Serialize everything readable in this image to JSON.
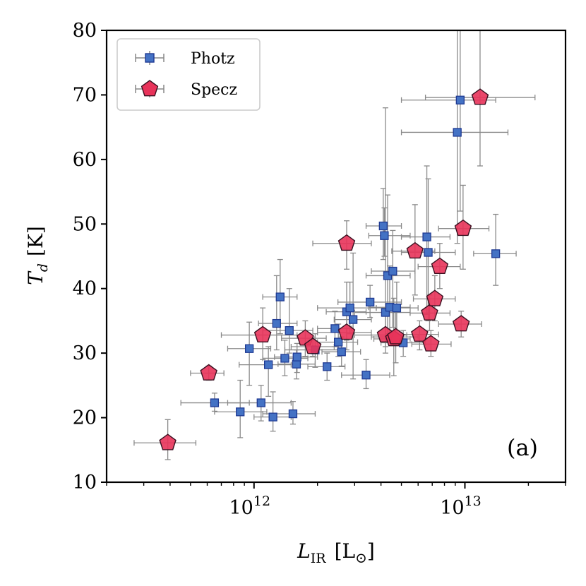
{
  "chart_data": {
    "type": "scatter",
    "xscale": "log",
    "xlim": [
      200000000000.0,
      30000000000000.0
    ],
    "ylim": [
      10,
      80
    ],
    "xlabel": "L",
    "xlabel_sub": "IR",
    "xlabel_unit": "[L",
    "xlabel_unit_sub": "⊙",
    "xlabel_unit_close": "]",
    "ylabel": "T",
    "ylabel_sub": "d",
    "ylabel_unit": "[K]",
    "yticks": [
      10,
      20,
      30,
      40,
      50,
      60,
      70,
      80
    ],
    "yticklabels": [
      "10",
      "20",
      "30",
      "40",
      "50",
      "60",
      "70",
      "80"
    ],
    "xticks": [
      1000000000000.0,
      10000000000000.0
    ],
    "xtick_base": "10",
    "xtick_exponents": [
      "12",
      "13"
    ],
    "panel_label": "(a)",
    "legend_position": "top-left",
    "series": [
      {
        "name": "Photz",
        "marker": "square",
        "color": "#4472c4",
        "edgecolor": "#1f3a93",
        "points": [
          {
            "x": 650000000000.0,
            "y": 22.3,
            "xlo": 450000000000.0,
            "xhi": 950000000000.0,
            "ylo": 21.0,
            "yhi": 23.8
          },
          {
            "x": 860000000000.0,
            "y": 20.9,
            "xlo": 650000000000.0,
            "xhi": 1150000000000.0,
            "ylo": 16.9,
            "yhi": 25.8
          },
          {
            "x": 950000000000.0,
            "y": 30.7,
            "xlo": 750000000000.0,
            "xhi": 1200000000000.0,
            "ylo": 25.0,
            "yhi": 34.8
          },
          {
            "x": 1080000000000.0,
            "y": 22.3,
            "xlo": 750000000000.0,
            "xhi": 1500000000000.0,
            "ylo": 19.5,
            "yhi": 25.0
          },
          {
            "x": 1170000000000.0,
            "y": 28.2,
            "xlo": 850000000000.0,
            "xhi": 1500000000000.0,
            "ylo": 23.3,
            "yhi": 31.0
          },
          {
            "x": 1230000000000.0,
            "y": 20.1,
            "xlo": 1000000000000.0,
            "xhi": 1500000000000.0,
            "ylo": 17.9,
            "yhi": 24.0
          },
          {
            "x": 1280000000000.0,
            "y": 34.6,
            "xlo": 1050000000000.0,
            "xhi": 1600000000000.0,
            "ylo": 30.5,
            "yhi": 42.0
          },
          {
            "x": 1330000000000.0,
            "y": 38.7,
            "xlo": 1100000000000.0,
            "xhi": 1600000000000.0,
            "ylo": 33.0,
            "yhi": 44.5
          },
          {
            "x": 1400000000000.0,
            "y": 29.2,
            "xlo": 1100000000000.0,
            "xhi": 1800000000000.0,
            "ylo": 26.5,
            "yhi": 32.0
          },
          {
            "x": 1470000000000.0,
            "y": 33.5,
            "xlo": 1100000000000.0,
            "xhi": 1900000000000.0,
            "ylo": 30.0,
            "yhi": 40.0
          },
          {
            "x": 1530000000000.0,
            "y": 20.6,
            "xlo": 1100000000000.0,
            "xhi": 1950000000000.0,
            "ylo": 19.0,
            "yhi": 22.5
          },
          {
            "x": 1590000000000.0,
            "y": 28.3,
            "xlo": 1300000000000.0,
            "xhi": 1950000000000.0,
            "ylo": 26.0,
            "yhi": 30.5
          },
          {
            "x": 1600000000000.0,
            "y": 29.4,
            "xlo": 1250000000000.0,
            "xhi": 2000000000000.0,
            "ylo": 27.0,
            "yhi": 31.5
          },
          {
            "x": 1950000000000.0,
            "y": 30.5,
            "xlo": 1400000000000.0,
            "xhi": 2500000000000.0,
            "ylo": 27.8,
            "yhi": 33.0
          },
          {
            "x": 2220000000000.0,
            "y": 27.9,
            "xlo": 1800000000000.0,
            "xhi": 2700000000000.0,
            "ylo": 25.8,
            "yhi": 30.0
          },
          {
            "x": 2420000000000.0,
            "y": 33.8,
            "xlo": 2000000000000.0,
            "xhi": 2900000000000.0,
            "ylo": 31.0,
            "yhi": 36.5
          },
          {
            "x": 2510000000000.0,
            "y": 31.7,
            "xlo": 2000000000000.0,
            "xhi": 3100000000000.0,
            "ylo": 29.5,
            "yhi": 34.5
          },
          {
            "x": 2600000000000.0,
            "y": 30.2,
            "xlo": 2100000000000.0,
            "xhi": 3200000000000.0,
            "ylo": 28.0,
            "yhi": 32.5
          },
          {
            "x": 2750000000000.0,
            "y": 36.4,
            "xlo": 2200000000000.0,
            "xhi": 3400000000000.0,
            "ylo": 32.0,
            "yhi": 41.0
          },
          {
            "x": 2850000000000.0,
            "y": 37.0,
            "xlo": 2000000000000.0,
            "xhi": 3800000000000.0,
            "ylo": 33.0,
            "yhi": 41.0
          },
          {
            "x": 2950000000000.0,
            "y": 35.2,
            "xlo": 2400000000000.0,
            "xhi": 3600000000000.0,
            "ylo": 26.0,
            "yhi": 45.5
          },
          {
            "x": 3400000000000.0,
            "y": 26.6,
            "xlo": 2600000000000.0,
            "xhi": 4400000000000.0,
            "ylo": 24.5,
            "yhi": 29.0
          },
          {
            "x": 3550000000000.0,
            "y": 37.9,
            "xlo": 2500000000000.0,
            "xhi": 5000000000000.0,
            "ylo": 35.5,
            "yhi": 40.5
          },
          {
            "x": 4100000000000.0,
            "y": 49.7,
            "xlo": 3400000000000.0,
            "xhi": 5000000000000.0,
            "ylo": 44.5,
            "yhi": 55.5
          },
          {
            "x": 4150000000000.0,
            "y": 48.2,
            "xlo": 3500000000000.0,
            "xhi": 5500000000000.0,
            "ylo": 45.0,
            "yhi": 52.5
          },
          {
            "x": 4200000000000.0,
            "y": 36.3,
            "xlo": 3000000000000.0,
            "xhi": 5500000000000.0,
            "ylo": 31.0,
            "yhi": 68.0
          },
          {
            "x": 4300000000000.0,
            "y": 42.0,
            "xlo": 3400000000000.0,
            "xhi": 5500000000000.0,
            "ylo": 33.0,
            "yhi": 54.5
          },
          {
            "x": 4400000000000.0,
            "y": 37.1,
            "xlo": 3500000000000.0,
            "xhi": 5500000000000.0,
            "ylo": 32.0,
            "yhi": 43.5
          },
          {
            "x": 4550000000000.0,
            "y": 42.7,
            "xlo": 3600000000000.0,
            "xhi": 5800000000000.0,
            "ylo": 34.0,
            "yhi": 49.0
          },
          {
            "x": 4750000000000.0,
            "y": 37.0,
            "xlo": 3800000000000.0,
            "xhi": 6000000000000.0,
            "ylo": 33.5,
            "yhi": 41.0
          },
          {
            "x": 5100000000000.0,
            "y": 31.6,
            "xlo": 4000000000000.0,
            "xhi": 6500000000000.0,
            "ylo": 29.5,
            "yhi": 33.5
          },
          {
            "x": 6600000000000.0,
            "y": 48.0,
            "xlo": 5000000000000.0,
            "xhi": 8500000000000.0,
            "ylo": 36.0,
            "yhi": 59.0
          },
          {
            "x": 6700000000000.0,
            "y": 45.6,
            "xlo": 5000000000000.0,
            "xhi": 9000000000000.0,
            "ylo": 35.0,
            "yhi": 57.0
          },
          {
            "x": 9200000000000.0,
            "y": 64.2,
            "xlo": 5000000000000.0,
            "xhi": 16000000000000.0,
            "ylo": 47.0,
            "yhi": 80.0
          },
          {
            "x": 9500000000000.0,
            "y": 69.2,
            "xlo": 5000000000000.0,
            "xhi": 14000000000000.0,
            "ylo": 52.0,
            "yhi": 80.0
          },
          {
            "x": 14000000000000.0,
            "y": 45.4,
            "xlo": 11000000000000.0,
            "xhi": 17500000000000.0,
            "ylo": 40.5,
            "yhi": 51.5
          }
        ]
      },
      {
        "name": "Specz",
        "marker": "pentagon",
        "color": "#e8335a",
        "edgecolor": "#3a1020",
        "points": [
          {
            "x": 390000000000.0,
            "y": 16.1,
            "xlo": 270000000000.0,
            "xhi": 530000000000.0,
            "ylo": 13.5,
            "yhi": 19.7
          },
          {
            "x": 610000000000.0,
            "y": 26.9,
            "xlo": 500000000000.0,
            "xhi": 720000000000.0,
            "ylo": 25.8,
            "yhi": 28.0
          },
          {
            "x": 1100000000000.0,
            "y": 32.8,
            "xlo": 700000000000.0,
            "xhi": 1600000000000.0,
            "ylo": 29.0,
            "yhi": 37.0
          },
          {
            "x": 1750000000000.0,
            "y": 32.3,
            "xlo": 1350000000000.0,
            "xhi": 2200000000000.0,
            "ylo": 29.5,
            "yhi": 35.0
          },
          {
            "x": 1900000000000.0,
            "y": 31.0,
            "xlo": 1500000000000.0,
            "xhi": 2400000000000.0,
            "ylo": 29.5,
            "yhi": 32.5
          },
          {
            "x": 2750000000000.0,
            "y": 47.0,
            "xlo": 1900000000000.0,
            "xhi": 3600000000000.0,
            "ylo": 43.0,
            "yhi": 50.5
          },
          {
            "x": 2750000000000.0,
            "y": 33.2,
            "xlo": 2000000000000.0,
            "xhi": 3600000000000.0,
            "ylo": 30.5,
            "yhi": 36.0
          },
          {
            "x": 4200000000000.0,
            "y": 32.8,
            "xlo": 3000000000000.0,
            "xhi": 5300000000000.0,
            "ylo": 30.0,
            "yhi": 36.0
          },
          {
            "x": 4600000000000.0,
            "y": 32.2,
            "xlo": 3700000000000.0,
            "xhi": 5500000000000.0,
            "ylo": 26.5,
            "yhi": 38.5
          },
          {
            "x": 4700000000000.0,
            "y": 32.5,
            "xlo": 3600000000000.0,
            "xhi": 6000000000000.0,
            "ylo": 28.5,
            "yhi": 37.0
          },
          {
            "x": 5800000000000.0,
            "y": 45.8,
            "xlo": 4500000000000.0,
            "xhi": 7200000000000.0,
            "ylo": 39.0,
            "yhi": 53.0
          },
          {
            "x": 6100000000000.0,
            "y": 32.9,
            "xlo": 5000000000000.0,
            "xhi": 7500000000000.0,
            "ylo": 30.5,
            "yhi": 35.0
          },
          {
            "x": 6800000000000.0,
            "y": 36.2,
            "xlo": 5500000000000.0,
            "xhi": 8500000000000.0,
            "ylo": 33.5,
            "yhi": 39.0
          },
          {
            "x": 6900000000000.0,
            "y": 31.4,
            "xlo": 5600000000000.0,
            "xhi": 8600000000000.0,
            "ylo": 29.5,
            "yhi": 33.5
          },
          {
            "x": 7200000000000.0,
            "y": 38.4,
            "xlo": 5700000000000.0,
            "xhi": 9000000000000.0,
            "ylo": 35.0,
            "yhi": 42.0
          },
          {
            "x": 7600000000000.0,
            "y": 43.4,
            "xlo": 6000000000000.0,
            "xhi": 9500000000000.0,
            "ylo": 40.0,
            "yhi": 47.0
          },
          {
            "x": 9600000000000.0,
            "y": 34.5,
            "xlo": 7500000000000.0,
            "xhi": 12000000000000.0,
            "ylo": 32.5,
            "yhi": 36.5
          },
          {
            "x": 9800000000000.0,
            "y": 49.3,
            "xlo": 7500000000000.0,
            "xhi": 13000000000000.0,
            "ylo": 43.0,
            "yhi": 56.0
          },
          {
            "x": 11800000000000.0,
            "y": 69.6,
            "xlo": 6500000000000.0,
            "xhi": 21500000000000.0,
            "ylo": 59.0,
            "yhi": 80.0
          }
        ]
      }
    ]
  }
}
